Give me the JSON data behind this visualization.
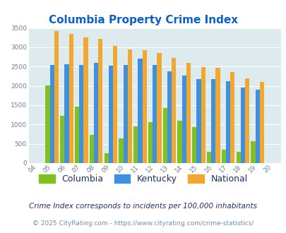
{
  "title": "Columbia Property Crime Index",
  "title_color": "#1060c0",
  "years": [
    2004,
    2005,
    2006,
    2007,
    2008,
    2009,
    2010,
    2011,
    2012,
    2013,
    2014,
    2015,
    2016,
    2017,
    2018,
    2019,
    2020
  ],
  "columbia": [
    0,
    2020,
    1220,
    1470,
    730,
    255,
    645,
    950,
    1060,
    1420,
    1100,
    940,
    295,
    350,
    290,
    560,
    0
  ],
  "kentucky": [
    0,
    2540,
    2560,
    2540,
    2590,
    2530,
    2550,
    2700,
    2550,
    2380,
    2260,
    2180,
    2180,
    2130,
    1960,
    1900,
    0
  ],
  "national": [
    0,
    3420,
    3340,
    3260,
    3210,
    3040,
    2950,
    2920,
    2860,
    2730,
    2600,
    2490,
    2460,
    2360,
    2200,
    2110,
    0
  ],
  "columbia_color": "#80c020",
  "kentucky_color": "#4090e0",
  "national_color": "#f0a830",
  "bg_color": "#ddeaee",
  "ylim": [
    0,
    3500
  ],
  "yticks": [
    0,
    500,
    1000,
    1500,
    2000,
    2500,
    3000,
    3500
  ],
  "legend_labels": [
    "Columbia",
    "Kentucky",
    "National"
  ],
  "footnote1": "Crime Index corresponds to incidents per 100,000 inhabitants",
  "footnote2": "© 2025 CityRating.com - https://www.cityrating.com/crime-statistics/",
  "footnote1_color": "#203060",
  "footnote2_color": "#7090b0"
}
